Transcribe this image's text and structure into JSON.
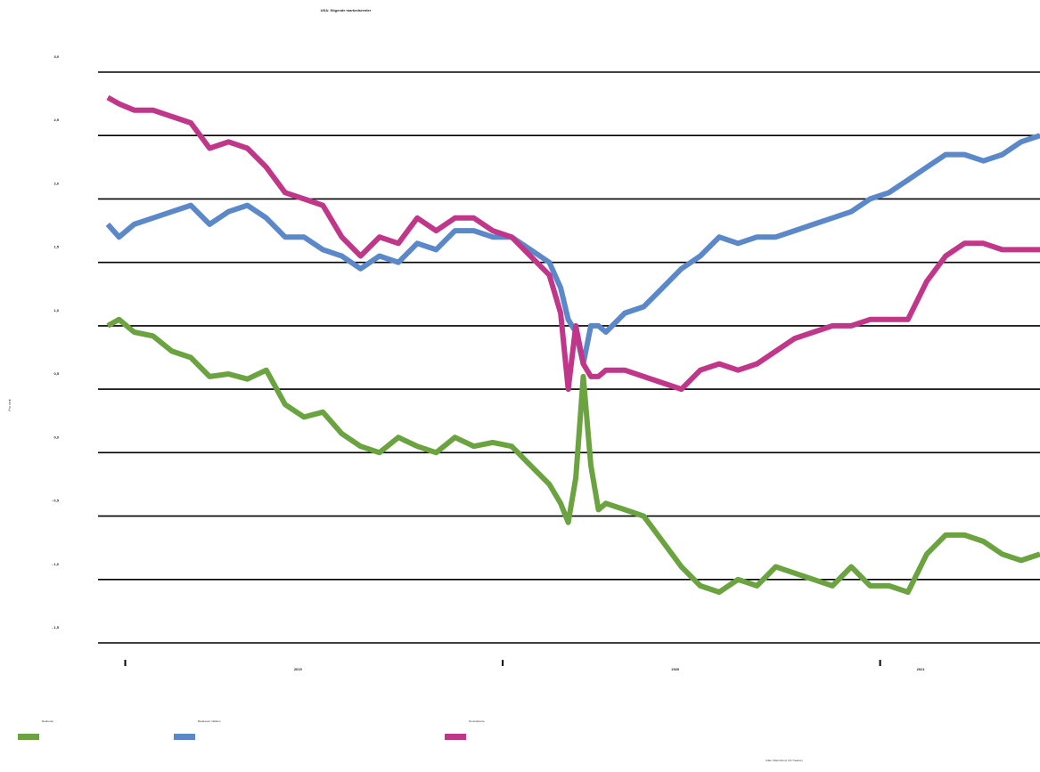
{
  "chart_data": {
    "type": "line",
    "title": "USA: Stigende markedsrenter",
    "ylabel": "Pro cent",
    "source": "Kilde: Macrobond, US Treasury",
    "y_ticks": [
      {
        "value": 3.0,
        "label": "3,0"
      },
      {
        "value": 2.5,
        "label": "2,5"
      },
      {
        "value": 2.0,
        "label": "2,0"
      },
      {
        "value": 1.5,
        "label": "1,5"
      },
      {
        "value": 1.0,
        "label": "1,0"
      },
      {
        "value": 0.5,
        "label": "0,5"
      },
      {
        "value": 0.0,
        "label": "0,0"
      },
      {
        "value": -0.5,
        "label": "- 0,5"
      },
      {
        "value": -1.0,
        "label": "- 1,0"
      },
      {
        "value": -1.5,
        "label": "- 1,5"
      }
    ],
    "ylim": [
      -1.5,
      3.0
    ],
    "xlim": [
      2018.97,
      2021.42
    ],
    "x_ticks": [
      2019.0,
      2020.0,
      2021.0
    ],
    "x_labels": [
      {
        "value": 2019.5,
        "label": "2019"
      },
      {
        "value": 2020.5,
        "label": "2020"
      },
      {
        "value": 2021.15,
        "label": "2021"
      }
    ],
    "grid": true,
    "legend_position": "bottom",
    "series": [
      {
        "name": "Realrente",
        "color": "#6aa340",
        "x": [
          2018.93,
          2018.96,
          2019.0,
          2019.05,
          2019.1,
          2019.15,
          2019.2,
          2019.25,
          2019.3,
          2019.35,
          2019.4,
          2019.45,
          2019.5,
          2019.55,
          2019.6,
          2019.65,
          2019.7,
          2019.75,
          2019.8,
          2019.85,
          2019.9,
          2019.95,
          2020.0,
          2020.05,
          2020.1,
          2020.13,
          2020.15,
          2020.17,
          2020.19,
          2020.21,
          2020.23,
          2020.25,
          2020.3,
          2020.35,
          2020.4,
          2020.45,
          2020.5,
          2020.55,
          2020.6,
          2020.65,
          2020.7,
          2020.75,
          2020.8,
          2020.85,
          2020.9,
          2020.95,
          2021.0,
          2021.05,
          2021.1,
          2021.15,
          2021.2,
          2021.25,
          2021.3,
          2021.35,
          2021.4
        ],
        "y": [
          1.0,
          1.05,
          0.95,
          0.92,
          0.8,
          0.75,
          0.6,
          0.62,
          0.58,
          0.65,
          0.38,
          0.28,
          0.32,
          0.15,
          0.05,
          0.0,
          0.12,
          0.05,
          0.0,
          0.12,
          0.05,
          0.08,
          0.05,
          -0.1,
          -0.25,
          -0.4,
          -0.55,
          -0.2,
          0.6,
          -0.1,
          -0.45,
          -0.4,
          -0.45,
          -0.5,
          -0.7,
          -0.9,
          -1.05,
          -1.1,
          -1.0,
          -1.05,
          -0.9,
          -0.95,
          -1.0,
          -1.05,
          -0.9,
          -1.05,
          -1.05,
          -1.1,
          -0.8,
          -0.65,
          -0.65,
          -0.7,
          -0.8,
          -0.85,
          -0.8
        ]
      },
      {
        "name": "Breakeven inflation",
        "color": "#5b88c8",
        "x": [
          2018.93,
          2018.96,
          2019.0,
          2019.05,
          2019.1,
          2019.15,
          2019.2,
          2019.25,
          2019.3,
          2019.35,
          2019.4,
          2019.45,
          2019.5,
          2019.55,
          2019.6,
          2019.65,
          2019.7,
          2019.75,
          2019.8,
          2019.85,
          2019.9,
          2019.95,
          2020.0,
          2020.05,
          2020.1,
          2020.13,
          2020.15,
          2020.17,
          2020.19,
          2020.21,
          2020.23,
          2020.25,
          2020.3,
          2020.35,
          2020.4,
          2020.45,
          2020.5,
          2020.55,
          2020.6,
          2020.65,
          2020.7,
          2020.75,
          2020.8,
          2020.85,
          2020.9,
          2020.95,
          2021.0,
          2021.05,
          2021.1,
          2021.15,
          2021.2,
          2021.25,
          2021.3,
          2021.35,
          2021.4
        ],
        "y": [
          1.8,
          1.7,
          1.8,
          1.85,
          1.9,
          1.95,
          1.8,
          1.9,
          1.95,
          1.85,
          1.7,
          1.7,
          1.6,
          1.55,
          1.45,
          1.55,
          1.5,
          1.65,
          1.6,
          1.75,
          1.75,
          1.7,
          1.7,
          1.6,
          1.5,
          1.3,
          1.05,
          0.95,
          0.7,
          1.0,
          1.0,
          0.95,
          1.1,
          1.15,
          1.3,
          1.45,
          1.55,
          1.7,
          1.65,
          1.7,
          1.7,
          1.75,
          1.8,
          1.85,
          1.9,
          2.0,
          2.05,
          2.15,
          2.25,
          2.35,
          2.35,
          2.3,
          2.35,
          2.45,
          2.5
        ]
      },
      {
        "name": "Nominalrente",
        "color": "#c0378a",
        "x": [
          2018.93,
          2018.96,
          2019.0,
          2019.05,
          2019.1,
          2019.15,
          2019.2,
          2019.25,
          2019.3,
          2019.35,
          2019.4,
          2019.45,
          2019.5,
          2019.55,
          2019.6,
          2019.65,
          2019.7,
          2019.75,
          2019.8,
          2019.85,
          2019.9,
          2019.95,
          2020.0,
          2020.05,
          2020.1,
          2020.13,
          2020.15,
          2020.17,
          2020.19,
          2020.21,
          2020.23,
          2020.25,
          2020.3,
          2020.35,
          2020.4,
          2020.45,
          2020.5,
          2020.55,
          2020.6,
          2020.65,
          2020.7,
          2020.75,
          2020.8,
          2020.85,
          2020.9,
          2020.95,
          2021.0,
          2021.05,
          2021.1,
          2021.15,
          2021.2,
          2021.25,
          2021.3,
          2021.35,
          2021.4
        ],
        "y": [
          2.8,
          2.75,
          2.7,
          2.7,
          2.65,
          2.6,
          2.4,
          2.45,
          2.4,
          2.25,
          2.05,
          2.0,
          1.95,
          1.7,
          1.55,
          1.7,
          1.65,
          1.85,
          1.75,
          1.85,
          1.85,
          1.75,
          1.7,
          1.55,
          1.4,
          1.1,
          0.5,
          1.0,
          0.7,
          0.6,
          0.6,
          0.65,
          0.65,
          0.6,
          0.55,
          0.5,
          0.65,
          0.7,
          0.65,
          0.7,
          0.8,
          0.9,
          0.95,
          1.0,
          1.0,
          1.05,
          1.05,
          1.05,
          1.35,
          1.55,
          1.65,
          1.65,
          1.6,
          1.6,
          1.6
        ]
      }
    ]
  }
}
